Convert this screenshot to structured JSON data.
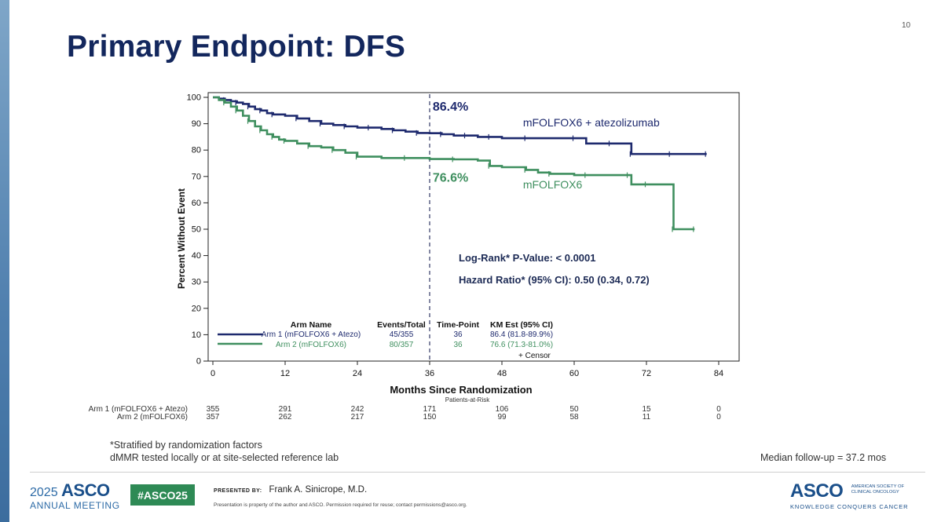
{
  "slide": {
    "title": "Primary Endpoint: DFS",
    "slide_number": "10",
    "footnote_1": "*Stratified by randomization factors",
    "footnote_2": "dMMR tested locally or at site-selected reference lab",
    "followup": "Median follow-up = 37.2 mos"
  },
  "chart_data": {
    "type": "line",
    "subtype": "kaplan-meier step curve",
    "xlabel": "Months Since Randomization",
    "ylabel": "Percent Without Event",
    "xlim": [
      0,
      84
    ],
    "ylim": [
      0,
      100
    ],
    "xticks": [
      0,
      12,
      24,
      36,
      48,
      60,
      72,
      84
    ],
    "yticks": [
      0,
      10,
      20,
      30,
      40,
      50,
      60,
      70,
      80,
      90,
      100
    ],
    "grid": false,
    "reference_line_x": 36,
    "series": [
      {
        "name": "mFOLFOX6 + atezolizumab",
        "color": "#1e2a6e",
        "x": [
          0,
          1,
          2,
          3,
          4,
          5,
          6,
          7,
          8,
          9,
          10,
          12,
          14,
          16,
          18,
          20,
          22,
          24,
          26,
          28,
          30,
          32,
          34,
          36,
          38,
          40,
          42,
          44,
          46,
          48,
          52,
          56,
          60,
          62,
          66,
          69,
          69.5,
          72,
          76,
          80,
          82
        ],
        "y": [
          100,
          99.5,
          99,
          98.5,
          98,
          97.5,
          96.5,
          95.5,
          95,
          94,
          93.5,
          93,
          92,
          91,
          90,
          89.5,
          89,
          88.5,
          88.5,
          88,
          87.5,
          87,
          86.5,
          86.4,
          86,
          85.5,
          85.5,
          85,
          85,
          84.5,
          84.5,
          84.5,
          84.5,
          82.5,
          82.5,
          82.5,
          78.5,
          78.5,
          78.5,
          78.5,
          78.5
        ]
      },
      {
        "name": "mFOLFOX6",
        "color": "#3f8f5f",
        "x": [
          0,
          1,
          2,
          3,
          4,
          5,
          6,
          7,
          8,
          9,
          10,
          11,
          12,
          14,
          16,
          18,
          20,
          22,
          24,
          28,
          32,
          36,
          40,
          44,
          46,
          48,
          52,
          54,
          56,
          60,
          62,
          66,
          69,
          69.5,
          72,
          76,
          76.5,
          78,
          80
        ],
        "y": [
          100,
          99,
          98,
          96.5,
          95,
          93,
          91,
          89,
          87.5,
          86,
          85,
          84,
          83.5,
          82.5,
          81.5,
          81,
          80,
          79,
          77.5,
          77,
          77,
          76.6,
          76.5,
          76,
          74,
          73.5,
          72.5,
          71.5,
          71,
          70.5,
          70.5,
          70.5,
          70.5,
          67,
          67,
          67,
          50,
          50,
          50
        ]
      }
    ],
    "annotations": [
      {
        "text": "86.4%",
        "x": 36.5,
        "y": 95
      },
      {
        "text": "76.6%",
        "x": 36.5,
        "y": 68
      },
      {
        "text": "mFOLFOX6 + atezolizumab",
        "x": 51.5,
        "y": 89
      },
      {
        "text": "mFOLFOX6",
        "x": 51.5,
        "y": 65.5
      }
    ],
    "stats": {
      "line1": "Log-Rank* P-Value: < 0.0001",
      "line2": "Hazard Ratio* (95% CI): 0.50 (0.34, 0.72)"
    },
    "legend_table": {
      "headers": [
        "Arm Name",
        "Events/Total",
        "Time-Point",
        "KM Est (95% CI)"
      ],
      "rows": [
        {
          "arm": "Arm 1 (mFOLFOX6 + Atezo)",
          "events": "45/355",
          "timepoint": "36",
          "km": "86.4 (81.8-89.9%)"
        },
        {
          "arm": "Arm 2 (mFOLFOX6)",
          "events": "80/357",
          "timepoint": "36",
          "km": "76.6 (71.3-81.0%)"
        }
      ],
      "censor_note": "+ Censor"
    },
    "at_risk": {
      "title": "Patients-at-Risk",
      "times": [
        0,
        12,
        24,
        36,
        48,
        60,
        72,
        84
      ],
      "rows": [
        {
          "label": "Arm 1 (mFOLFOX6 + Atezo)",
          "values": [
            "355",
            "291",
            "242",
            "171",
            "106",
            "50",
            "15",
            "0"
          ]
        },
        {
          "label": "Arm 2 (mFOLFOX6)",
          "values": [
            "357",
            "262",
            "217",
            "150",
            "99",
            "58",
            "11",
            "0"
          ]
        }
      ]
    }
  },
  "footer": {
    "meeting_year": "2025",
    "meeting_brand": "ASCO",
    "meeting_sub": "ANNUAL MEETING",
    "hashtag": "#ASCO25",
    "presented_label": "PRESENTED BY:",
    "presenter": "Frank A. Sinicrope, M.D.",
    "disclaimer": "Presentation is property of the author and ASCO. Permission required for reuse; contact permissions@asco.org.",
    "asco_brand": "ASCO",
    "asco_society": "AMERICAN SOCIETY OF CLINICAL ONCOLOGY",
    "asco_tagline": "KNOWLEDGE CONQUERS CANCER"
  }
}
